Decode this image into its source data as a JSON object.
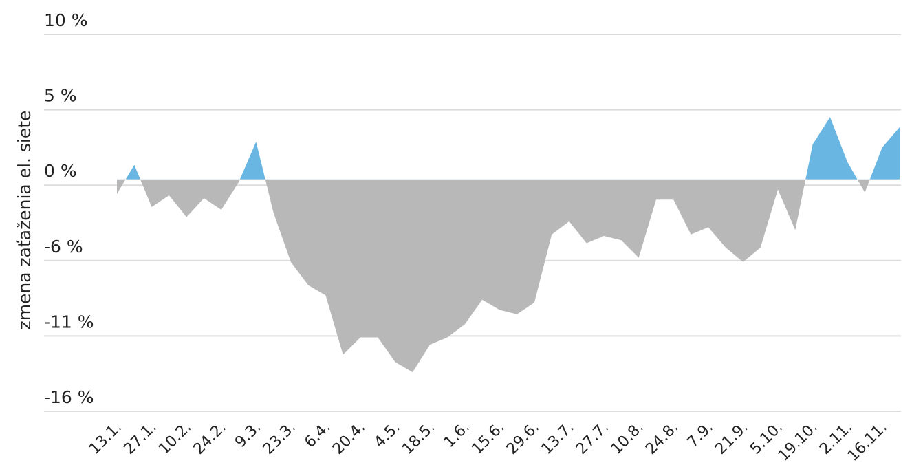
{
  "chart_data": {
    "type": "area",
    "y_axis_label": "zmena zaťaženia el. siete",
    "categories": [
      "13.1.",
      null,
      "27.1.",
      null,
      "10.2.",
      null,
      "24.2.",
      null,
      "9.3.",
      null,
      "23.3.",
      null,
      "6.4.",
      null,
      "20.4.",
      null,
      "4.5.",
      null,
      "18.5.",
      null,
      "1.6.",
      null,
      "15.6.",
      null,
      "29.6.",
      null,
      "13.7.",
      null,
      "27.7.",
      null,
      "10.8.",
      null,
      "24.8.",
      null,
      "7.9.",
      null,
      "21.9.",
      null,
      "5.10.",
      null,
      "19.10.",
      null,
      "2.11.",
      null,
      "16.11.",
      null
    ],
    "values": [
      -1.0,
      1.0,
      -1.9,
      -1.1,
      -2.6,
      -1.3,
      -2.1,
      -0.2,
      2.6,
      -2.3,
      -5.7,
      -7.3,
      -8.0,
      -12.1,
      -10.9,
      -10.9,
      -12.6,
      -13.3,
      -11.4,
      -10.9,
      -10.0,
      -8.3,
      -9.0,
      -9.3,
      -8.5,
      -3.8,
      -2.9,
      -4.4,
      -3.9,
      -4.2,
      -5.4,
      -1.4,
      -1.4,
      -3.8,
      -3.3,
      -4.7,
      -5.7,
      -4.7,
      -0.7,
      -3.5,
      2.4,
      4.3,
      1.2,
      -0.9,
      2.2,
      3.6
    ],
    "positive_color": "#69b6e3",
    "negative_color": "#b8b8b8",
    "ylim": [
      -16,
      10
    ],
    "yticks": [
      {
        "value": 10,
        "label": "10 %"
      },
      {
        "value": 4.8,
        "label": "5 %"
      },
      {
        "value": -0.4,
        "label": "0 %"
      },
      {
        "value": -5.6,
        "label": "-6 %"
      },
      {
        "value": -10.8,
        "label": "-11 %"
      },
      {
        "value": -16,
        "label": "-16 %"
      }
    ],
    "grid": true
  }
}
